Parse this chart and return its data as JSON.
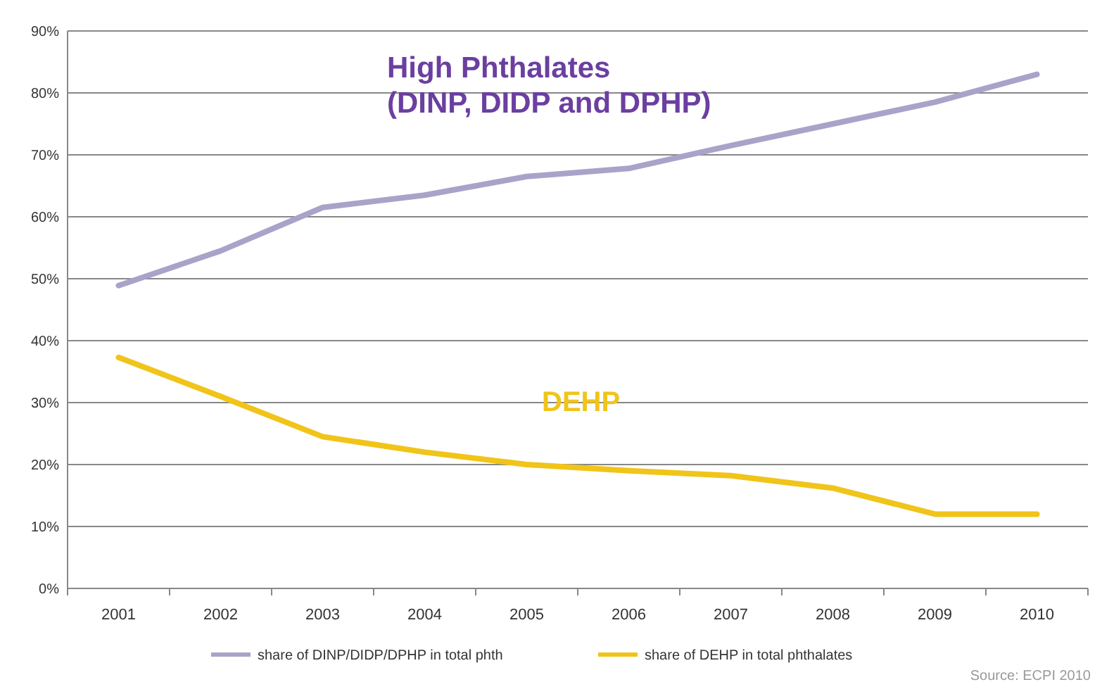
{
  "chart_data": {
    "type": "line",
    "categories": [
      "2001",
      "2002",
      "2003",
      "2004",
      "2005",
      "2006",
      "2007",
      "2008",
      "2009",
      "2010"
    ],
    "series": [
      {
        "name": "share of DINP/DIDP/DPHP in total phth",
        "color": "#a9a3c9",
        "values": [
          48.9,
          54.5,
          61.5,
          63.5,
          66.5,
          67.8,
          71.5,
          75,
          78.5,
          83
        ]
      },
      {
        "name": "share of DEHP in total phthalates",
        "color": "#f0c419",
        "values": [
          37.3,
          31,
          24.5,
          22,
          20,
          19,
          18.2,
          16.2,
          12,
          12
        ]
      }
    ],
    "ylim": [
      0,
      90
    ],
    "yticks": [
      {
        "value": 0,
        "label": "0%"
      },
      {
        "value": 10,
        "label": "10%"
      },
      {
        "value": 20,
        "label": "20%"
      },
      {
        "value": 30,
        "label": "30%"
      },
      {
        "value": 40,
        "label": "40%"
      },
      {
        "value": 50,
        "label": "50%"
      },
      {
        "value": 60,
        "label": "60%"
      },
      {
        "value": 70,
        "label": "70%"
      },
      {
        "value": 80,
        "label": "80%"
      },
      {
        "value": 90,
        "label": "90%"
      }
    ],
    "grid": "y",
    "legend": "bottom",
    "marker": "none",
    "line_style": "solid",
    "annotations": [
      "High Phthalates",
      "(DINP, DIDP and DPHP)",
      "DEHP",
      "Source: ECPI 2010"
    ]
  }
}
